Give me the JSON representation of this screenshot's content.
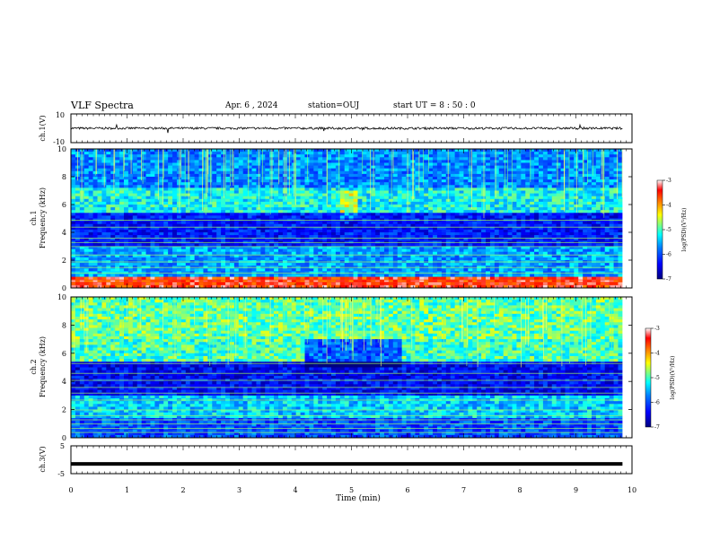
{
  "header": {
    "title": "VLF Spectra",
    "date": "Apr. 6 , 2024",
    "station": "station=OUJ",
    "start_ut": "start UT = 8 : 50 : 0"
  },
  "colors": {
    "waveform": "#000000",
    "colormap": [
      "#00007f",
      "#0000ff",
      "#0080ff",
      "#00ffff",
      "#80ff80",
      "#ffff00",
      "#ff8000",
      "#ff0000",
      "#ffffff"
    ]
  },
  "chart_data": [
    {
      "type": "line",
      "panel": "ch1-waveform",
      "ylabel": "ch.1(V)",
      "ylim": [
        -10,
        10
      ],
      "yticks": [
        "10",
        "-10"
      ],
      "x_range_min": [
        0,
        9.83
      ],
      "level": 0,
      "noise_amplitude": 1.5
    },
    {
      "type": "heatmap",
      "panel": "ch1-spectrogram",
      "ylabel": "ch.1\nFrequency (kHz)",
      "ylim": [
        0,
        10
      ],
      "yticks": [
        "0",
        "2",
        "4",
        "6",
        "8",
        "10"
      ],
      "colorbar": {
        "label": "log(PSD)(V²/Hz)",
        "range": [
          -7,
          -3
        ],
        "ticks": [
          "-3",
          "-4",
          "-5",
          "-6",
          "-7"
        ]
      },
      "description_profile_khz": [
        {
          "band": [
            0,
            0.8
          ],
          "log_psd": -3.5
        },
        {
          "band": [
            0.8,
            3.0
          ],
          "log_psd": -5.6
        },
        {
          "band": [
            3.0,
            5.5
          ],
          "log_psd": -6.3
        },
        {
          "band": [
            5.5,
            7.2
          ],
          "log_psd": -5.2
        },
        {
          "band": [
            7.2,
            10
          ],
          "log_psd": -5.7
        }
      ]
    },
    {
      "type": "heatmap",
      "panel": "ch2-spectrogram",
      "ylabel": "ch.2\nFrequency (kHz)",
      "ylim": [
        0,
        10
      ],
      "yticks": [
        "0",
        "2",
        "4",
        "6",
        "8",
        "10"
      ],
      "colorbar": {
        "label": "log(PSD)(V²/Hz)",
        "range": [
          -7,
          -3
        ],
        "ticks": [
          "-3",
          "-4",
          "-5",
          "-6",
          "-7"
        ]
      },
      "description_profile_khz": [
        {
          "band": [
            0,
            1.5
          ],
          "log_psd": -6.0
        },
        {
          "band": [
            1.5,
            3.0
          ],
          "log_psd": -5.4
        },
        {
          "band": [
            3.0,
            5.5
          ],
          "log_psd": -6.4
        },
        {
          "band": [
            5.5,
            7.0
          ],
          "log_psd": -5.0
        },
        {
          "band": [
            7.0,
            10
          ],
          "log_psd": -4.9
        }
      ]
    },
    {
      "type": "line",
      "panel": "ch3-waveform",
      "ylabel": "ch.3(V)",
      "ylim": [
        -5,
        5
      ],
      "yticks": [
        "5",
        "0",
        "-5"
      ],
      "x_range_min": [
        0,
        9.83
      ],
      "level": -1.5
    }
  ],
  "xaxis": {
    "label": "Time (min)",
    "range_min": [
      0,
      10
    ],
    "ticks": [
      "0",
      "1",
      "2",
      "3",
      "4",
      "5",
      "6",
      "7",
      "8",
      "9",
      "10"
    ]
  }
}
